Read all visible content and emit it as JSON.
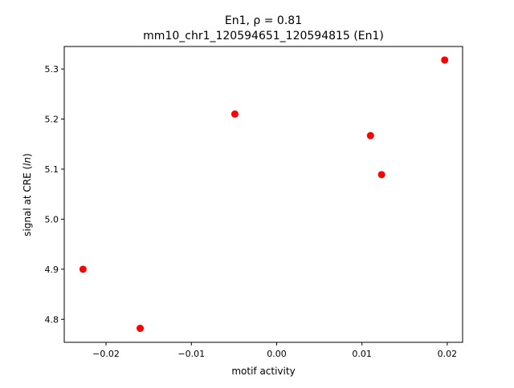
{
  "chart_data": {
    "type": "scatter",
    "title_line1": "En1, ρ = 0.81",
    "title_line2": "mm10_chr1_120594651_120594815 (En1)",
    "xlabel": "motif activity",
    "ylabel_prefix": "signal at CRE (",
    "ylabel_italic": "ln",
    "ylabel_suffix": ")",
    "xlim": [
      -0.0249,
      0.0218
    ],
    "ylim": [
      4.754,
      5.345
    ],
    "xticks": [
      {
        "value": -0.02,
        "label": "−0.02"
      },
      {
        "value": -0.01,
        "label": "−0.01"
      },
      {
        "value": 0.0,
        "label": "0.00"
      },
      {
        "value": 0.01,
        "label": "0.01"
      },
      {
        "value": 0.02,
        "label": "0.02"
      }
    ],
    "yticks": [
      {
        "value": 4.8,
        "label": "4.8"
      },
      {
        "value": 4.9,
        "label": "4.9"
      },
      {
        "value": 5.0,
        "label": "5.0"
      },
      {
        "value": 5.1,
        "label": "5.1"
      },
      {
        "value": 5.2,
        "label": "5.2"
      },
      {
        "value": 5.3,
        "label": "5.3"
      }
    ],
    "grid": false,
    "marker_color": "#ff0000",
    "points": [
      {
        "x": -0.0227,
        "y": 4.9
      },
      {
        "x": -0.016,
        "y": 4.782
      },
      {
        "x": -0.0049,
        "y": 5.21
      },
      {
        "x": 0.011,
        "y": 5.167
      },
      {
        "x": 0.0123,
        "y": 5.089
      },
      {
        "x": 0.0197,
        "y": 5.318
      }
    ]
  }
}
